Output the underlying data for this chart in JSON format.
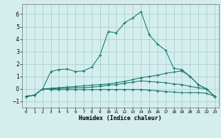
{
  "xlabel": "Humidex (Indice chaleur)",
  "background_color": "#d4eeee",
  "grid_color": "#aacece",
  "line_color": "#1a7a6a",
  "xlim": [
    -0.5,
    23.5
  ],
  "ylim": [
    -1.5,
    6.8
  ],
  "yticks": [
    -1,
    0,
    1,
    2,
    3,
    4,
    5,
    6
  ],
  "xticks": [
    0,
    1,
    2,
    3,
    4,
    5,
    6,
    7,
    8,
    9,
    10,
    11,
    12,
    13,
    14,
    15,
    16,
    17,
    18,
    19,
    20,
    21,
    22,
    23
  ],
  "series1_x": [
    0,
    1,
    2,
    3,
    4,
    5,
    6,
    7,
    8,
    9,
    10,
    11,
    12,
    13,
    14,
    15,
    16,
    17,
    18,
    19,
    20,
    21,
    22,
    23
  ],
  "series1_y": [
    -0.6,
    -0.5,
    0.0,
    1.4,
    1.55,
    1.6,
    1.4,
    1.45,
    1.75,
    2.7,
    4.6,
    4.5,
    5.3,
    5.7,
    6.2,
    4.35,
    3.6,
    3.1,
    1.65,
    1.55,
    1.0,
    0.35,
    0.0,
    -0.6
  ],
  "series2_x": [
    0,
    1,
    2,
    3,
    4,
    5,
    6,
    7,
    8,
    9,
    10,
    11,
    12,
    13,
    14,
    15,
    16,
    17,
    18,
    19,
    20,
    21,
    22,
    23
  ],
  "series2_y": [
    -0.6,
    -0.5,
    0.0,
    0.05,
    0.1,
    0.15,
    0.2,
    0.25,
    0.3,
    0.35,
    0.4,
    0.5,
    0.6,
    0.75,
    0.9,
    1.0,
    1.1,
    1.25,
    1.35,
    1.45,
    1.0,
    0.35,
    0.0,
    -0.6
  ],
  "series3_x": [
    0,
    1,
    2,
    3,
    4,
    5,
    6,
    7,
    8,
    9,
    10,
    11,
    12,
    13,
    14,
    15,
    16,
    17,
    18,
    19,
    20,
    21,
    22,
    23
  ],
  "series3_y": [
    -0.6,
    -0.5,
    0.0,
    0.0,
    0.05,
    0.05,
    0.1,
    0.1,
    0.15,
    0.2,
    0.3,
    0.35,
    0.45,
    0.55,
    0.65,
    0.6,
    0.55,
    0.5,
    0.4,
    0.35,
    0.2,
    0.1,
    0.0,
    -0.6
  ],
  "series4_x": [
    0,
    1,
    2,
    3,
    4,
    5,
    6,
    7,
    8,
    9,
    10,
    11,
    12,
    13,
    14,
    15,
    16,
    17,
    18,
    19,
    20,
    21,
    22,
    23
  ],
  "series4_y": [
    -0.6,
    -0.5,
    0.0,
    -0.05,
    -0.05,
    -0.05,
    -0.05,
    -0.05,
    -0.05,
    -0.05,
    -0.05,
    -0.05,
    -0.05,
    -0.05,
    -0.05,
    -0.1,
    -0.15,
    -0.2,
    -0.25,
    -0.3,
    -0.3,
    -0.3,
    -0.35,
    -0.6
  ]
}
